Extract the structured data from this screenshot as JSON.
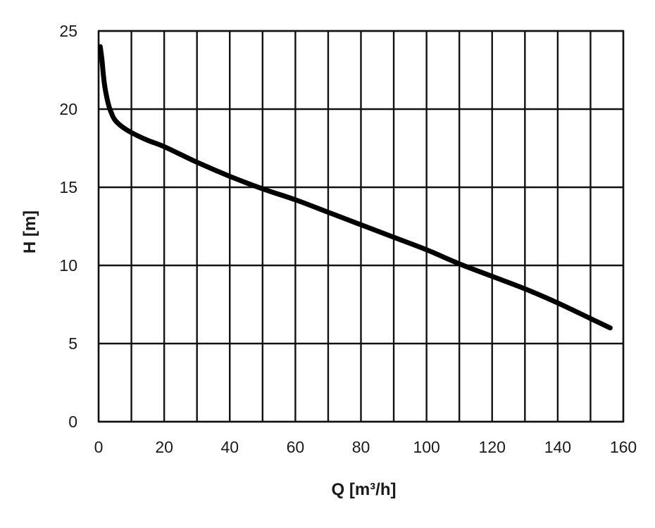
{
  "chart_data": {
    "type": "line",
    "xlabel": "Q [m³/h]",
    "ylabel": "H [m]",
    "xlim": [
      0,
      160
    ],
    "ylim": [
      0,
      25
    ],
    "x_ticks": [
      0,
      20,
      40,
      60,
      80,
      100,
      120,
      140,
      160
    ],
    "y_ticks": [
      0,
      5,
      10,
      15,
      20,
      25
    ],
    "x_gridlines": [
      0,
      10,
      20,
      30,
      40,
      50,
      60,
      70,
      80,
      90,
      100,
      110,
      120,
      130,
      140,
      150,
      160
    ],
    "y_gridlines": [
      0,
      5,
      10,
      15,
      20,
      25
    ],
    "grid": true,
    "legend": "none",
    "series": [
      {
        "color": "#000000",
        "x": [
          0.5,
          1,
          1.5,
          2,
          3,
          4,
          5,
          7,
          10,
          15,
          20,
          30,
          40,
          50,
          60,
          70,
          80,
          90,
          100,
          110,
          120,
          130,
          140,
          150,
          156
        ],
        "y": [
          24,
          23.2,
          22.1,
          21.3,
          20.3,
          19.7,
          19.3,
          18.9,
          18.5,
          18.0,
          17.6,
          16.6,
          15.7,
          14.9,
          14.2,
          13.4,
          12.6,
          11.8,
          11.0,
          10.1,
          9.3,
          8.5,
          7.6,
          6.6,
          6.0
        ]
      }
    ]
  }
}
